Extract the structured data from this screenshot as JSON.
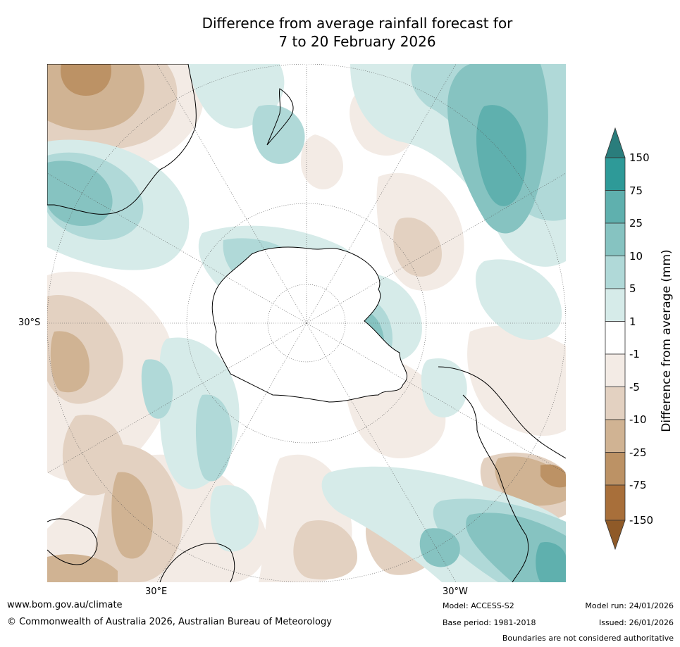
{
  "title": {
    "line1": "Difference from average rainfall forecast for",
    "line2": "7 to 20 February 2026"
  },
  "map": {
    "projection": "south-polar-stereographic",
    "lat_label": "30°S",
    "lon_labels": [
      "30°E",
      "30°W"
    ],
    "colors": {
      "water_bg": "#ffffff",
      "coast": "#000000",
      "grid": "#555555"
    }
  },
  "legend": {
    "title": "Difference from average (mm)",
    "levels": [
      "150",
      "75",
      "25",
      "10",
      "5",
      "1",
      "-1",
      "-5",
      "-10",
      "-25",
      "-75",
      "-150"
    ],
    "colors": [
      "#2a7d7c",
      "#2e9a98",
      "#5fb0ae",
      "#86c3c1",
      "#b0d9d8",
      "#d6ebe9",
      "#ffffff",
      "#f3ebe5",
      "#e3d1c1",
      "#d0b393",
      "#bc9265",
      "#a86f3a",
      "#8f5a28"
    ]
  },
  "footer": {
    "website": "www.bom.gov.au/climate",
    "copyright": "© Commonwealth of Australia 2026, Australian Bureau of Meteorology",
    "model": "Model: ACCESS-S2",
    "base_period": "Base period: 1981-2018",
    "model_run": "Model run: 24/01/2026",
    "issued": "Issued: 26/01/2026",
    "disclaimer": "Boundaries are not considered authoritative"
  }
}
